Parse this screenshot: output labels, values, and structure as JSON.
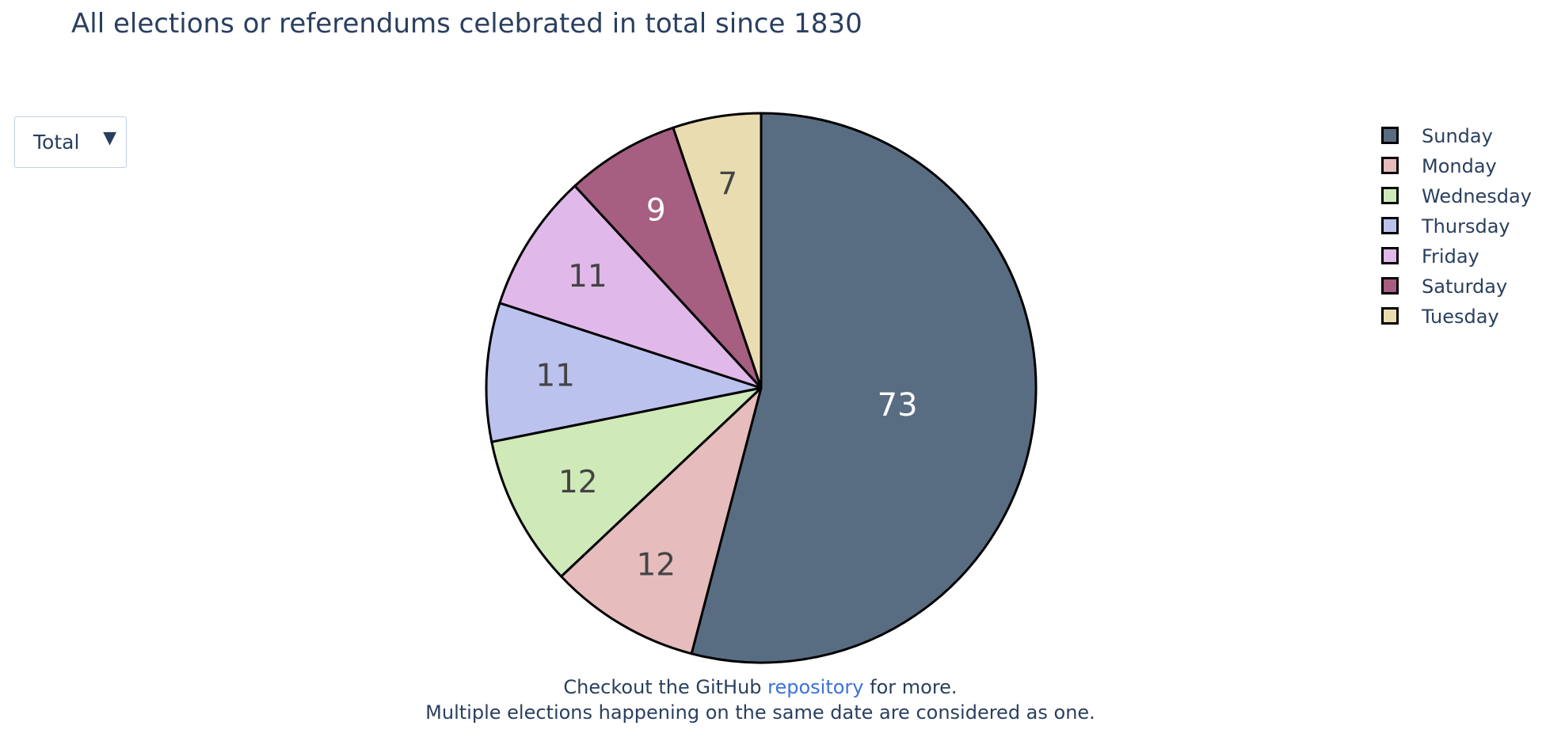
{
  "chart_data": {
    "type": "pie",
    "title": "All elections or referendums celebrated in total since 1830",
    "slices": [
      {
        "label": "Sunday",
        "value": 73,
        "color": "#596d82",
        "text_color": "#ffffff"
      },
      {
        "label": "Monday",
        "value": 12,
        "color": "#e6bcbd",
        "text_color": "#444444"
      },
      {
        "label": "Wednesday",
        "value": 12,
        "color": "#cfe9b9",
        "text_color": "#444444"
      },
      {
        "label": "Thursday",
        "value": 11,
        "color": "#bcc2ee",
        "text_color": "#444444"
      },
      {
        "label": "Friday",
        "value": 11,
        "color": "#e0b8e9",
        "text_color": "#444444"
      },
      {
        "label": "Saturday",
        "value": 9,
        "color": "#a65e81",
        "text_color": "#ffffff"
      },
      {
        "label": "Tuesday",
        "value": 7,
        "color": "#e9dcb0",
        "text_color": "#444444"
      }
    ],
    "direction": "clockwise",
    "start": "top",
    "legend_position": "top-right",
    "slice_border_color": "#000000"
  },
  "dropdown": {
    "selected": "Total",
    "arrow": "▼"
  },
  "footer": {
    "line1_before": "Checkout the GitHub ",
    "line1_link": "repository",
    "line1_after": " for more.",
    "line2": "Multiple elections happening on the same date are considered as one."
  },
  "colors": {
    "text": "#2a3f5f",
    "link": "#3b72d9"
  }
}
